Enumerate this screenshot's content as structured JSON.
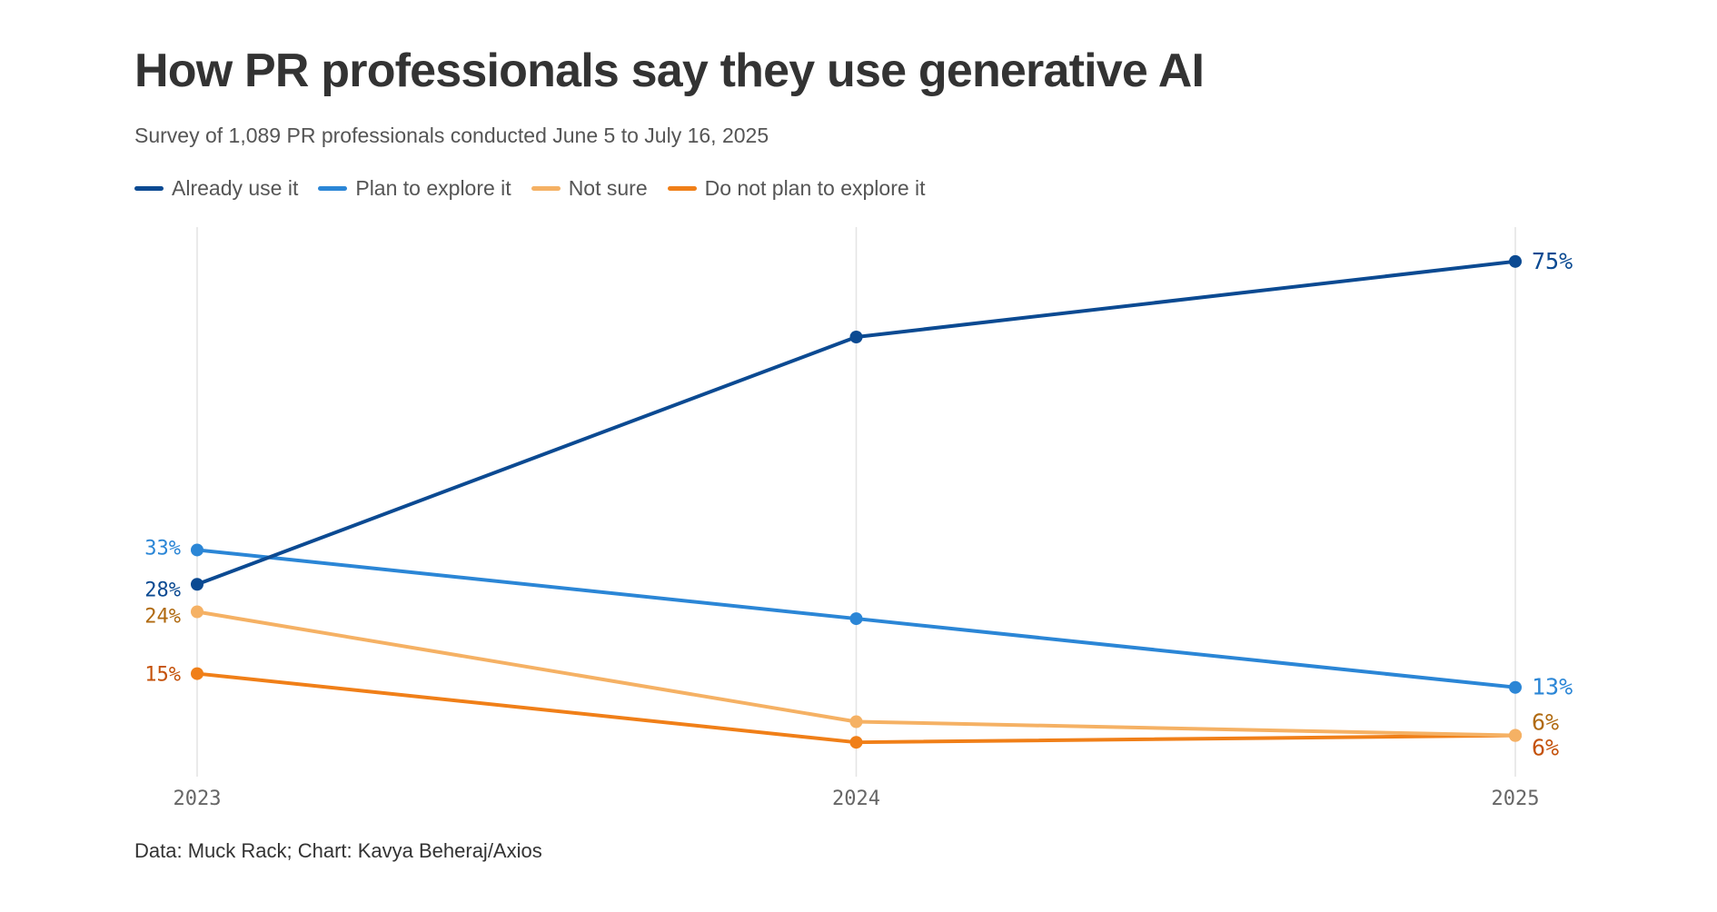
{
  "title": "How PR professionals say they use generative AI",
  "subtitle": "Survey of 1,089 PR professionals conducted June 5 to July 16, 2025",
  "source": "Data: Muck Rack; Chart: Kavya Beheraj/Axios",
  "chart_data": {
    "type": "line",
    "x": [
      "2023",
      "2024",
      "2025"
    ],
    "ylim": [
      0,
      80
    ],
    "grid": "vertical gridlines at each year",
    "legend_position": "top-left",
    "series": [
      {
        "name": "Already use it",
        "values": [
          28,
          64,
          75
        ],
        "color": "#0b4a92",
        "label_color": "#0b4a92",
        "start_label": "28%",
        "end_label": "75%"
      },
      {
        "name": "Plan to explore it",
        "values": [
          33,
          23,
          13
        ],
        "color": "#2b86d6",
        "label_color": "#2b86d6",
        "start_label": "33%",
        "end_label": "13%"
      },
      {
        "name": "Not sure",
        "values": [
          24,
          8,
          6
        ],
        "color": "#f5b164",
        "label_color": "#b06a10",
        "start_label": "24%",
        "end_label": "6%"
      },
      {
        "name": "Do not plan to explore it",
        "values": [
          15,
          5,
          6
        ],
        "color": "#f07f18",
        "label_color": "#c4510a",
        "start_label": "15%",
        "end_label": "6%"
      }
    ]
  }
}
